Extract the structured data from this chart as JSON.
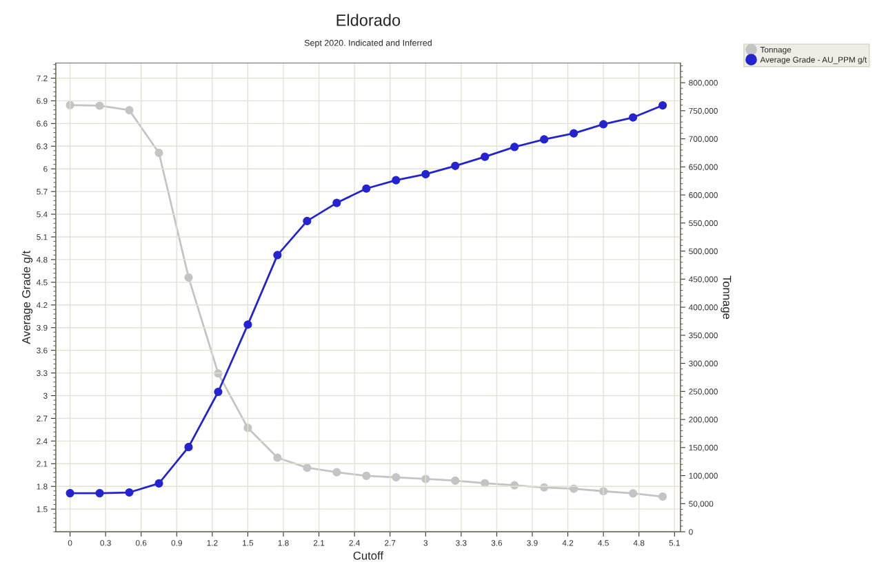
{
  "chart_data": {
    "type": "line",
    "title": "Eldorado",
    "subtitle": "Sept 2020. Indicated and Inferred",
    "xlabel": "Cutoff",
    "ylabel": "Average Grade g/t",
    "y2label": "Tonnage",
    "x": [
      0,
      0.25,
      0.5,
      0.75,
      1.0,
      1.25,
      1.5,
      1.75,
      2.0,
      2.25,
      2.5,
      2.75,
      3.0,
      3.25,
      3.5,
      3.75,
      4.0,
      4.25,
      4.5,
      4.75,
      5.0
    ],
    "series": [
      {
        "name": "Tonnage",
        "color": "#c4c4c4",
        "axis": "y2",
        "values": [
          760000,
          759000,
          751000,
          675000,
          453000,
          282000,
          185000,
          132000,
          114000,
          106000,
          99700,
          97000,
          94000,
          91000,
          86600,
          82700,
          78900,
          76700,
          72200,
          68400,
          62600
        ]
      },
      {
        "name": "Average Grade - AU_PPM g/t",
        "color": "#2323d0",
        "axis": "y",
        "values": [
          1.71,
          1.71,
          1.72,
          1.84,
          2.32,
          3.05,
          3.94,
          4.86,
          5.31,
          5.55,
          5.74,
          5.85,
          5.93,
          6.04,
          6.16,
          6.29,
          6.39,
          6.47,
          6.59,
          6.68,
          6.84
        ]
      }
    ],
    "xlim": [
      -0.12,
      5.15
    ],
    "xticks": [
      0,
      0.3,
      0.6,
      0.9,
      1.2,
      1.5,
      1.8,
      2.1,
      2.4,
      2.7,
      3,
      3.3,
      3.6,
      3.9,
      4.2,
      4.5,
      4.8,
      5.1
    ],
    "ylim": [
      1.2,
      7.4
    ],
    "yticks": [
      1.5,
      1.8,
      2.1,
      2.4,
      2.7,
      3,
      3.3,
      3.6,
      3.9,
      4.2,
      4.5,
      4.8,
      5.1,
      5.4,
      5.7,
      6,
      6.3,
      6.6,
      6.9,
      7.2
    ],
    "y2lim": [
      0,
      835000
    ],
    "y2ticks": [
      0,
      {
        "value": 50000,
        "label": "50,000"
      },
      {
        "value": 100000,
        "label": "100,000"
      },
      {
        "value": 150000,
        "label": "150,000"
      },
      {
        "value": 200000,
        "label": "200,000"
      },
      {
        "value": 250000,
        "label": "250,000"
      },
      {
        "value": 300000,
        "label": "300,000"
      },
      {
        "value": 350000,
        "label": "350,000"
      },
      {
        "value": 400000,
        "label": "400,000"
      },
      {
        "value": 450000,
        "label": "450,000"
      },
      {
        "value": 500000,
        "label": "500,000"
      },
      {
        "value": 550000,
        "label": "550,000"
      },
      {
        "value": 600000,
        "label": "600,000"
      },
      {
        "value": 650000,
        "label": "650,000"
      },
      {
        "value": 700000,
        "label": "700,000"
      },
      {
        "value": 750000,
        "label": "750,000"
      },
      {
        "value": 800000,
        "label": "800,000"
      }
    ],
    "grid": true,
    "legend": "top right",
    "marker": "circle",
    "line_style": "solid"
  }
}
